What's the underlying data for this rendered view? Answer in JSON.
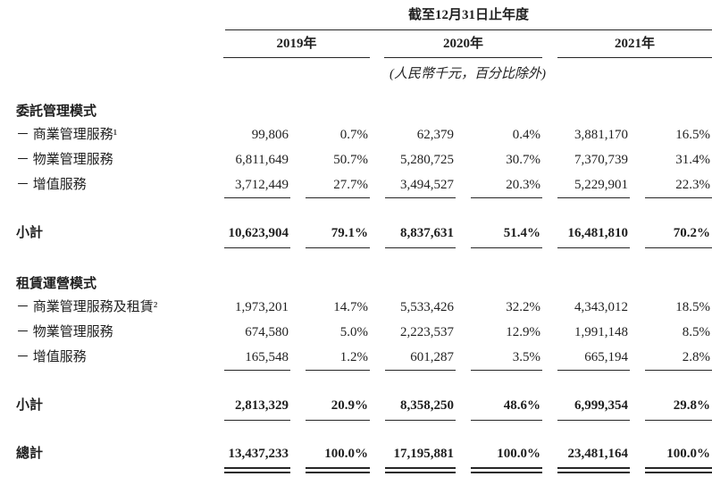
{
  "page": {
    "background": "#ffffff",
    "text_color": "#1f1f1f",
    "rule_color": "#262626"
  },
  "table": {
    "period_header": "截至12月31日止年度",
    "unit_note": "(人民幣千元，百分比除外)",
    "year_headers": [
      "2019年",
      "2020年",
      "2021年"
    ],
    "sections": [
      {
        "title": "委託管理模式",
        "rows": [
          {
            "label": "－ 商業管理服務¹",
            "values": [
              "99,806",
              "0.7%",
              "62,379",
              "0.4%",
              "3,881,170",
              "16.5%"
            ]
          },
          {
            "label": "－ 物業管理服務",
            "values": [
              "6,811,649",
              "50.7%",
              "5,280,725",
              "30.7%",
              "7,370,739",
              "31.4%"
            ]
          },
          {
            "label": "－ 增值服務",
            "values": [
              "3,712,449",
              "27.7%",
              "3,494,527",
              "20.3%",
              "5,229,901",
              "22.3%"
            ]
          }
        ],
        "subtotal": {
          "label": "小計",
          "values": [
            "10,623,904",
            "79.1%",
            "8,837,631",
            "51.4%",
            "16,481,810",
            "70.2%"
          ]
        }
      },
      {
        "title": "租賃運營模式",
        "rows": [
          {
            "label": "－ 商業管理服務及租賃²",
            "values": [
              "1,973,201",
              "14.7%",
              "5,533,426",
              "32.2%",
              "4,343,012",
              "18.5%"
            ]
          },
          {
            "label": "－ 物業管理服務",
            "values": [
              "674,580",
              "5.0%",
              "2,223,537",
              "12.9%",
              "1,991,148",
              "8.5%"
            ]
          },
          {
            "label": "－ 增值服務",
            "values": [
              "165,548",
              "1.2%",
              "601,287",
              "3.5%",
              "665,194",
              "2.8%"
            ]
          }
        ],
        "subtotal": {
          "label": "小計",
          "values": [
            "2,813,329",
            "20.9%",
            "8,358,250",
            "48.6%",
            "6,999,354",
            "29.8%"
          ]
        }
      }
    ],
    "total": {
      "label": "總計",
      "values": [
        "13,437,233",
        "100.0%",
        "17,195,881",
        "100.0%",
        "23,481,164",
        "100.0%"
      ]
    }
  }
}
